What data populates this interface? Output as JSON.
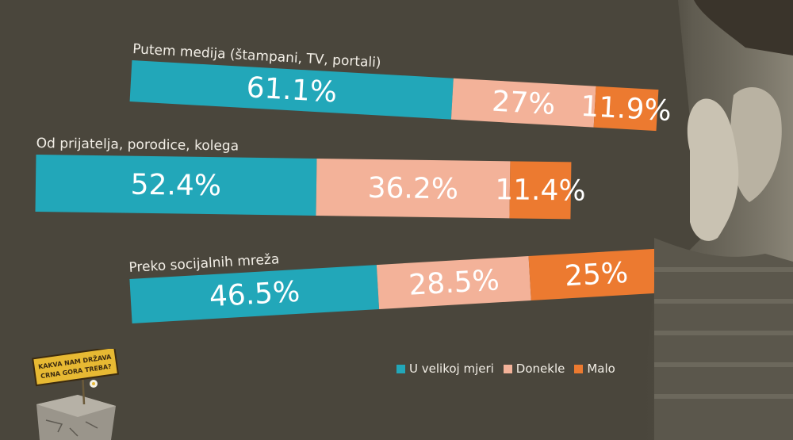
{
  "colors": {
    "background": "#4a463c",
    "u_velikoj": "#22a7b9",
    "donekle": "#f3b299",
    "malo": "#ec7a30"
  },
  "logo": {
    "line1": "KAKVA NAM DRŽAVA",
    "line2": "CRNA GORA TREBA?"
  },
  "chart_data": {
    "type": "bar",
    "orientation": "horizontal",
    "stacked": true,
    "unit": "%",
    "categories": [
      "Putem medija (štampani, TV, portali)",
      "Od prijatelja, porodice, kolega",
      "Preko socijalnih mreža"
    ],
    "series": [
      {
        "name": "U velikoj mjeri",
        "color": "#22a7b9",
        "values": [
          61.1,
          52.4,
          46.5
        ],
        "labels": [
          "61.1%",
          "52.4%",
          "46.5%"
        ]
      },
      {
        "name": "Donekle",
        "color": "#f3b299",
        "values": [
          27,
          36.2,
          28.5
        ],
        "labels": [
          "27%",
          "36.2%",
          "28.5%"
        ]
      },
      {
        "name": "Malo",
        "color": "#ec7a30",
        "values": [
          11.9,
          11.4,
          25
        ],
        "labels": [
          "11.9%",
          "11.4%",
          "25%"
        ]
      }
    ],
    "legend_position": "bottom-right",
    "title": "",
    "xlabel": "",
    "ylabel": ""
  }
}
